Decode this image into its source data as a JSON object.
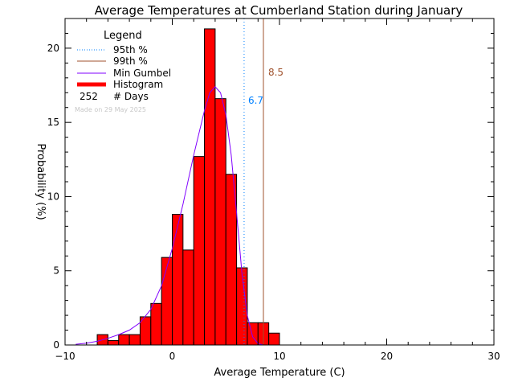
{
  "chart_data": {
    "type": "bar",
    "title": "Average Temperatures at Cumberland Station during January",
    "xlabel": "Average Temperature (C)",
    "ylabel": "Probability (%)",
    "xlim": [
      -10,
      30
    ],
    "ylim": [
      0,
      22
    ],
    "x_ticks": [
      -10,
      0,
      10,
      20,
      30
    ],
    "y_ticks": [
      0,
      5,
      10,
      15,
      20
    ],
    "x_tick_labels": [
      "−10",
      "0",
      "10",
      "20",
      "30"
    ],
    "y_tick_labels": [
      "0",
      "5",
      "10",
      "15",
      "20"
    ],
    "bin_width": 1,
    "bins": [
      {
        "start": -7,
        "value": 0.7
      },
      {
        "start": -6,
        "value": 0.3
      },
      {
        "start": -5,
        "value": 0.7
      },
      {
        "start": -4,
        "value": 0.7
      },
      {
        "start": -3,
        "value": 1.9
      },
      {
        "start": -2,
        "value": 2.8
      },
      {
        "start": -1,
        "value": 5.9
      },
      {
        "start": 0,
        "value": 8.8
      },
      {
        "start": 1,
        "value": 6.4
      },
      {
        "start": 2,
        "value": 12.7
      },
      {
        "start": 3,
        "value": 21.3
      },
      {
        "start": 4,
        "value": 16.6
      },
      {
        "start": 5,
        "value": 11.5
      },
      {
        "start": 6,
        "value": 5.2
      },
      {
        "start": 7,
        "value": 1.5
      },
      {
        "start": 8,
        "value": 1.5
      },
      {
        "start": 9,
        "value": 0.8
      }
    ],
    "gumbel_curve": {
      "x": [
        -9,
        -8,
        -7,
        -6,
        -5,
        -4,
        -3,
        -2,
        -1,
        0,
        1,
        2,
        3,
        3.5,
        4,
        4.5,
        5,
        5.5,
        6,
        6.5,
        7,
        7.5,
        8,
        8.5
      ],
      "y": [
        0.05,
        0.12,
        0.25,
        0.45,
        0.7,
        1.0,
        1.5,
        2.4,
        4.0,
        6.5,
        9.5,
        12.8,
        15.8,
        17.0,
        17.4,
        17.0,
        15.5,
        12.8,
        8.9,
        4.8,
        2.0,
        0.55,
        0.1,
        0.0
      ]
    },
    "percentiles": [
      {
        "name": "95th %",
        "value": 6.7,
        "label": "6.7",
        "color": "#0080ff",
        "style": "dotted"
      },
      {
        "name": "99th %",
        "value": 8.5,
        "label": "8.5",
        "color": "#a0522d",
        "style": "solid"
      }
    ],
    "legend": {
      "title": "Legend",
      "placement": "top-left",
      "entries": [
        {
          "label": "95th %",
          "color": "#0080ff",
          "style": "dotted"
        },
        {
          "label": "99th %",
          "color": "#a0522d",
          "style": "solid"
        },
        {
          "label": "Min Gumbel",
          "color": "#8000ff",
          "style": "solid"
        },
        {
          "label": "Histogram",
          "color": "#ff0000",
          "style": "thick"
        }
      ],
      "days_count": "252",
      "days_label": "# Days"
    },
    "annotation": "Made on 29 May 2025",
    "colors": {
      "histogram_fill": "#ff0000",
      "histogram_edge": "#000000",
      "gumbel": "#8000ff",
      "axis": "#000000",
      "annotation": "#c8c8c8"
    }
  }
}
